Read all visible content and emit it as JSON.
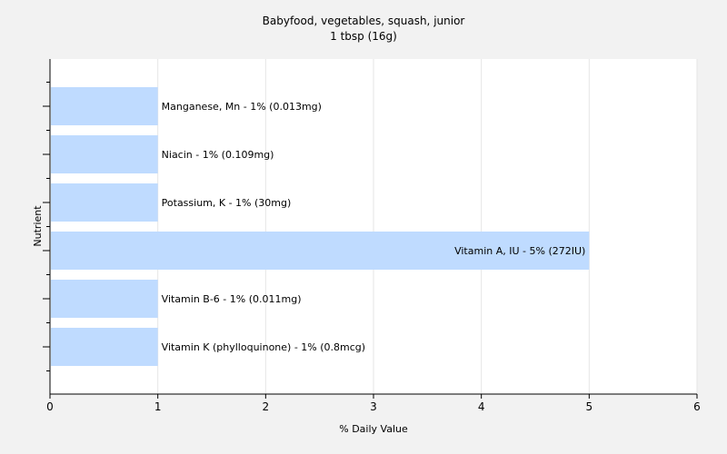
{
  "chart_data": {
    "type": "bar",
    "orientation": "horizontal",
    "title": "Babyfood, vegetables, squash, junior",
    "subtitle": "1 tbsp (16g)",
    "xlabel": "% Daily Value",
    "ylabel": "Nutrient",
    "xlim": [
      0,
      6
    ],
    "xticks": [
      0,
      1,
      2,
      3,
      4,
      5,
      6
    ],
    "grid": true,
    "bar_color": "#bfdbff",
    "categories": [
      "Manganese, Mn",
      "Niacin",
      "Potassium, K",
      "Vitamin A, IU",
      "Vitamin B-6",
      "Vitamin K (phylloquinone)"
    ],
    "values": [
      1,
      1,
      1,
      5,
      1,
      1
    ],
    "data_labels": [
      "Manganese, Mn - 1% (0.013mg)",
      "Niacin - 1% (0.109mg)",
      "Potassium, K - 1% (30mg)",
      "Vitamin A, IU - 5% (272IU)",
      "Vitamin B-6 - 1% (0.011mg)",
      "Vitamin K (phylloquinone) - 1% (0.8mcg)"
    ]
  }
}
